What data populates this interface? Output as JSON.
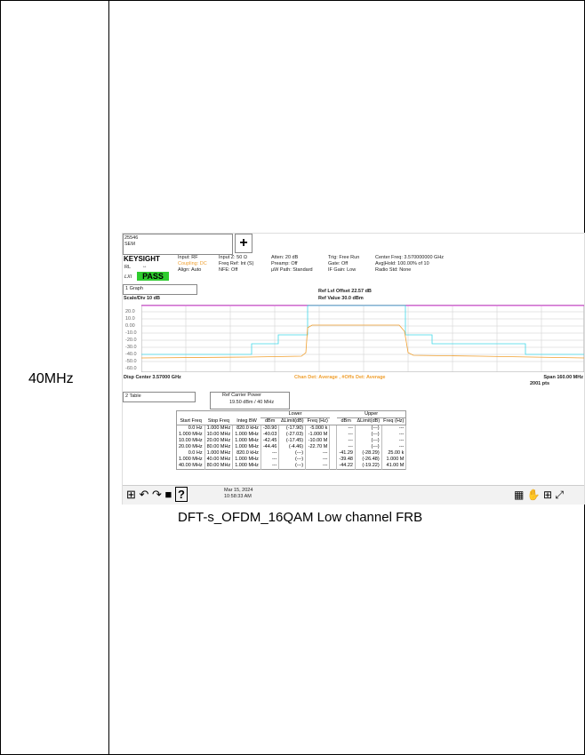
{
  "cell": {
    "label": "40MHz",
    "caption": "DFT-s_OFDM_16QAM Low channel FRB"
  },
  "screen": {
    "topbar": {
      "dropdown": [
        "25546",
        "SEM"
      ],
      "add": "+"
    },
    "info": {
      "brand": "KEYSIGHT",
      "rl": "RL",
      "lxi": "LXI",
      "pass": "PASS",
      "col1": [
        "Input: RF",
        "Coupling: DC",
        "Align: Auto"
      ],
      "col2": [
        "Input Z: 50 Ω",
        "Freq Ref: Int (S)",
        "NFE: Off"
      ],
      "col3": [
        "Atten: 20 dB",
        "Preamp: Off",
        "µW Path: Standard"
      ],
      "col4": [
        "Trig: Free Run",
        "Gate: Off",
        "IF Gain: Low"
      ],
      "col5": [
        "Center Freq: 3.570000000 GHz",
        "Avg|Hold: 100.00% of 10",
        "Radio Std: None"
      ]
    },
    "graph": {
      "selector": "1 Graph",
      "scale": "Scale/Div 10 dB",
      "ref_offset": "Ref Lvl Offset 22.57 dB",
      "ref_value": "Ref Value 30.0 dBm",
      "ylabels": [
        "20.0",
        "10.0",
        "0.00",
        "-10.0",
        "-20.0",
        "-30.0",
        "-40.0",
        "-50.0",
        "-60.0"
      ],
      "center": "Disp Center 3.57000 GHz",
      "detector": "Chan Det: Average , #Offs Det: Average",
      "span": "Span 160.00 MHz",
      "points": "2001 pts"
    },
    "table": {
      "selector": "2 Table",
      "ref_title": "Ref Carrier Power",
      "ref_value": "19.50 dBm / 40 MHz",
      "groups": [
        "Lower",
        "Upper"
      ],
      "headers": [
        "Start Freq",
        "Stop Freq",
        "Integ BW",
        "dBm",
        "ΔLimit(dB)",
        "Freq (Hz)",
        "dBm",
        "ΔLimit(dB)",
        "Freq (Hz)"
      ],
      "rows": [
        [
          "0.0 Hz",
          "1.000 MHz",
          "820.0 kHz",
          "-30.90",
          "(-17.90)",
          "-5.000 k",
          "---",
          "(---)",
          "---"
        ],
        [
          "1.000 MHz",
          "10.00 MHz",
          "1.000 MHz",
          "-40.03",
          "(-27.03)",
          "-1.000 M",
          "---",
          "(---)",
          "---"
        ],
        [
          "10.00 MHz",
          "20.00 MHz",
          "1.000 MHz",
          "-42.45",
          "(-17.45)",
          "-10.00 M",
          "---",
          "(---)",
          "---"
        ],
        [
          "20.00 MHz",
          "80.00 MHz",
          "1.000 MHz",
          "-44.46",
          "(-4.46)",
          "-22.70 M",
          "---",
          "(---)",
          "---"
        ],
        [
          "0.0 Hz",
          "1.000 MHz",
          "820.0 kHz",
          "---",
          "(---)",
          "---",
          "-41.29",
          "(-28.29)",
          "25.00 k"
        ],
        [
          "1.000 MHz",
          "40.00 MHz",
          "1.000 MHz",
          "---",
          "(---)",
          "---",
          "-39.48",
          "(-26.48)",
          "1.000 M"
        ],
        [
          "40.00 MHz",
          "80.00 MHz",
          "1.000 MHz",
          "---",
          "(---)",
          "---",
          "-44.22",
          "(-19.22)",
          "41.00 M"
        ]
      ]
    },
    "toolbar": {
      "date": "Mar 15, 2024",
      "time": "10:58:33 AM"
    }
  }
}
